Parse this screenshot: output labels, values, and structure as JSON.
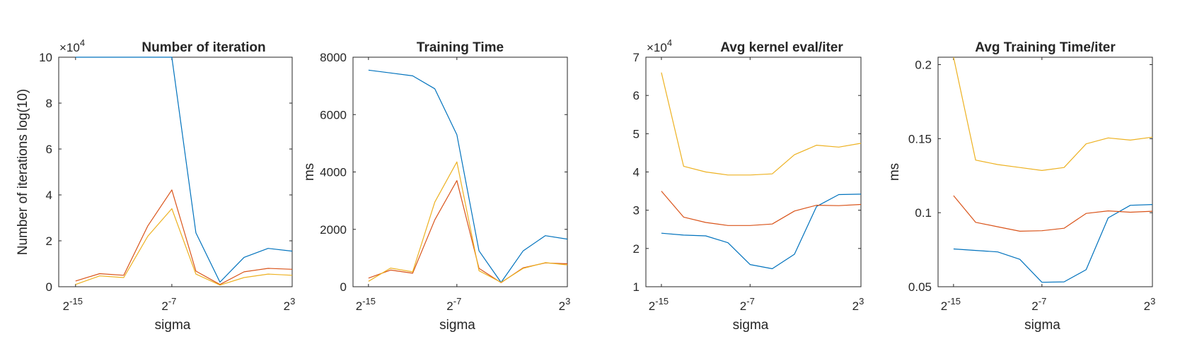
{
  "colors": {
    "blue": "#0072BD",
    "orange": "#D95319",
    "yellow": "#EDB120",
    "axis": "#262626"
  },
  "chart_data": [
    {
      "type": "line",
      "title": "Number of iteration",
      "xlabel": "sigma",
      "ylabel": "Number of iterations log(10)",
      "exponent_label": "×10",
      "exponent_power": "4",
      "x": [
        -15,
        -14,
        -13,
        -12,
        -11,
        -10,
        -9,
        -8,
        -7,
        -6,
        -5,
        -4,
        -3,
        -2,
        -1,
        0,
        1,
        2,
        3
      ],
      "xticks": [
        -15,
        -7,
        3
      ],
      "xtick_labels": [
        "2",
        "2",
        "2"
      ],
      "xtick_powers": [
        "-15",
        "-7",
        "3"
      ],
      "xlim": [
        -16.4,
        3
      ],
      "ylim": [
        0,
        10
      ],
      "yticks": [
        0,
        2,
        4,
        6,
        8,
        10
      ],
      "ytick_labels": [
        "0",
        "2",
        "4",
        "6",
        "8",
        "10"
      ],
      "series": [
        {
          "color": "blue",
          "x": [
            -15,
            -13,
            -11,
            -9,
            -7,
            -5,
            -3,
            -1,
            1,
            3
          ],
          "values": [
            10,
            10,
            10,
            10,
            10,
            2.35,
            0.2,
            1.28,
            1.67,
            1.55
          ]
        },
        {
          "color": "orange",
          "x": [
            -15,
            -13,
            -11,
            -9,
            -7,
            -5,
            -3,
            -1,
            1,
            3
          ],
          "values": [
            0.25,
            0.57,
            0.5,
            2.65,
            4.22,
            0.68,
            0.1,
            0.65,
            0.8,
            0.76
          ]
        },
        {
          "color": "yellow",
          "x": [
            -15,
            -13,
            -11,
            -9,
            -7,
            -5,
            -3,
            -1,
            1,
            3
          ],
          "values": [
            0.1,
            0.47,
            0.4,
            2.2,
            3.4,
            0.55,
            0.07,
            0.4,
            0.55,
            0.5
          ]
        }
      ]
    },
    {
      "type": "line",
      "title": "Training Time",
      "xlabel": "sigma",
      "ylabel": "ms",
      "x": [
        -15,
        -13,
        -11,
        -9,
        -7,
        -5,
        -3,
        -1,
        1,
        3
      ],
      "xticks": [
        -15,
        -7,
        3
      ],
      "xtick_labels": [
        "2",
        "2",
        "2"
      ],
      "xtick_powers": [
        "-15",
        "-7",
        "3"
      ],
      "xlim": [
        -16.4,
        3
      ],
      "ylim": [
        0,
        8000
      ],
      "yticks": [
        0,
        2000,
        4000,
        6000,
        8000
      ],
      "ytick_labels": [
        "0",
        "2000",
        "4000",
        "6000",
        "8000"
      ],
      "series": [
        {
          "color": "blue",
          "x": [
            -15,
            -13,
            -11,
            -9,
            -7,
            -5,
            -3,
            -1,
            1,
            3
          ],
          "values": [
            7550,
            7450,
            7350,
            6900,
            5300,
            1250,
            150,
            1250,
            1780,
            1660
          ]
        },
        {
          "color": "orange",
          "x": [
            -15,
            -13,
            -11,
            -9,
            -7,
            -5,
            -3,
            -1,
            1,
            3
          ],
          "values": [
            300,
            580,
            470,
            2330,
            3700,
            640,
            140,
            660,
            830,
            800
          ]
        },
        {
          "color": "yellow",
          "x": [
            -15,
            -13,
            -11,
            -9,
            -7,
            -5,
            -3,
            -1,
            1,
            3
          ],
          "values": [
            190,
            650,
            520,
            2950,
            4350,
            560,
            150,
            640,
            840,
            760
          ]
        }
      ]
    },
    {
      "type": "line",
      "title": "Avg kernel eval/iter",
      "xlabel": "sigma",
      "ylabel": "",
      "exponent_label": "×10",
      "exponent_power": "4",
      "x": [
        -15,
        -13,
        -11,
        -9,
        -7,
        -5,
        -3,
        -1,
        1,
        3
      ],
      "xticks": [
        -15,
        -7,
        3
      ],
      "xtick_labels": [
        "2",
        "2",
        "2"
      ],
      "xtick_powers": [
        "-15",
        "-7",
        "3"
      ],
      "xlim": [
        -16.4,
        3
      ],
      "ylim": [
        1,
        7
      ],
      "yticks": [
        1,
        2,
        3,
        4,
        5,
        6,
        7
      ],
      "ytick_labels": [
        "1",
        "2",
        "3",
        "4",
        "5",
        "6",
        "7"
      ],
      "series": [
        {
          "color": "blue",
          "x": [
            -15,
            -13,
            -11,
            -9,
            -7,
            -5,
            -3,
            -1,
            1,
            3
          ],
          "values": [
            2.4,
            2.35,
            2.33,
            2.15,
            1.58,
            1.47,
            1.85,
            3.1,
            3.41,
            3.42
          ]
        },
        {
          "color": "orange",
          "x": [
            -15,
            -13,
            -11,
            -9,
            -7,
            -5,
            -3,
            -1,
            1,
            3
          ],
          "values": [
            3.5,
            2.82,
            2.68,
            2.6,
            2.6,
            2.64,
            2.98,
            3.13,
            3.12,
            3.15
          ]
        },
        {
          "color": "yellow",
          "x": [
            -15,
            -13,
            -11,
            -9,
            -7,
            -5,
            -3,
            -1,
            1,
            3
          ],
          "values": [
            6.6,
            4.15,
            4.0,
            3.92,
            3.92,
            3.95,
            4.45,
            4.7,
            4.65,
            4.75
          ]
        }
      ]
    },
    {
      "type": "line",
      "title": "Avg Training Time/iter",
      "xlabel": "sigma",
      "ylabel": "ms",
      "x": [
        -15,
        -13,
        -11,
        -9,
        -7,
        -5,
        -3,
        -1,
        1,
        3
      ],
      "xticks": [
        -15,
        -7,
        3
      ],
      "xtick_labels": [
        "2",
        "2",
        "2"
      ],
      "xtick_powers": [
        "-15",
        "-7",
        "3"
      ],
      "xlim": [
        -16.4,
        3
      ],
      "ylim": [
        0.05,
        0.205
      ],
      "yticks": [
        0.05,
        0.1,
        0.15,
        0.2
      ],
      "ytick_labels": [
        "0.05",
        "0.1",
        "0.15",
        "0.2"
      ],
      "series": [
        {
          "color": "blue",
          "x": [
            -15,
            -13,
            -11,
            -9,
            -7,
            -5,
            -3,
            -1,
            1,
            3
          ],
          "values": [
            0.0755,
            0.0745,
            0.0735,
            0.0685,
            0.053,
            0.0533,
            0.0615,
            0.0965,
            0.105,
            0.1055
          ]
        },
        {
          "color": "orange",
          "x": [
            -15,
            -13,
            -11,
            -9,
            -7,
            -5,
            -3,
            -1,
            1,
            3
          ],
          "values": [
            0.1115,
            0.0935,
            0.0905,
            0.0875,
            0.0878,
            0.0895,
            0.0995,
            0.1012,
            0.1003,
            0.101
          ]
        },
        {
          "color": "yellow",
          "x": [
            -15,
            -13,
            -11,
            -9,
            -7,
            -5,
            -3,
            -1,
            1,
            3
          ],
          "values": [
            0.205,
            0.1355,
            0.1325,
            0.1305,
            0.1285,
            0.1305,
            0.1465,
            0.1505,
            0.149,
            0.151
          ]
        }
      ]
    }
  ]
}
